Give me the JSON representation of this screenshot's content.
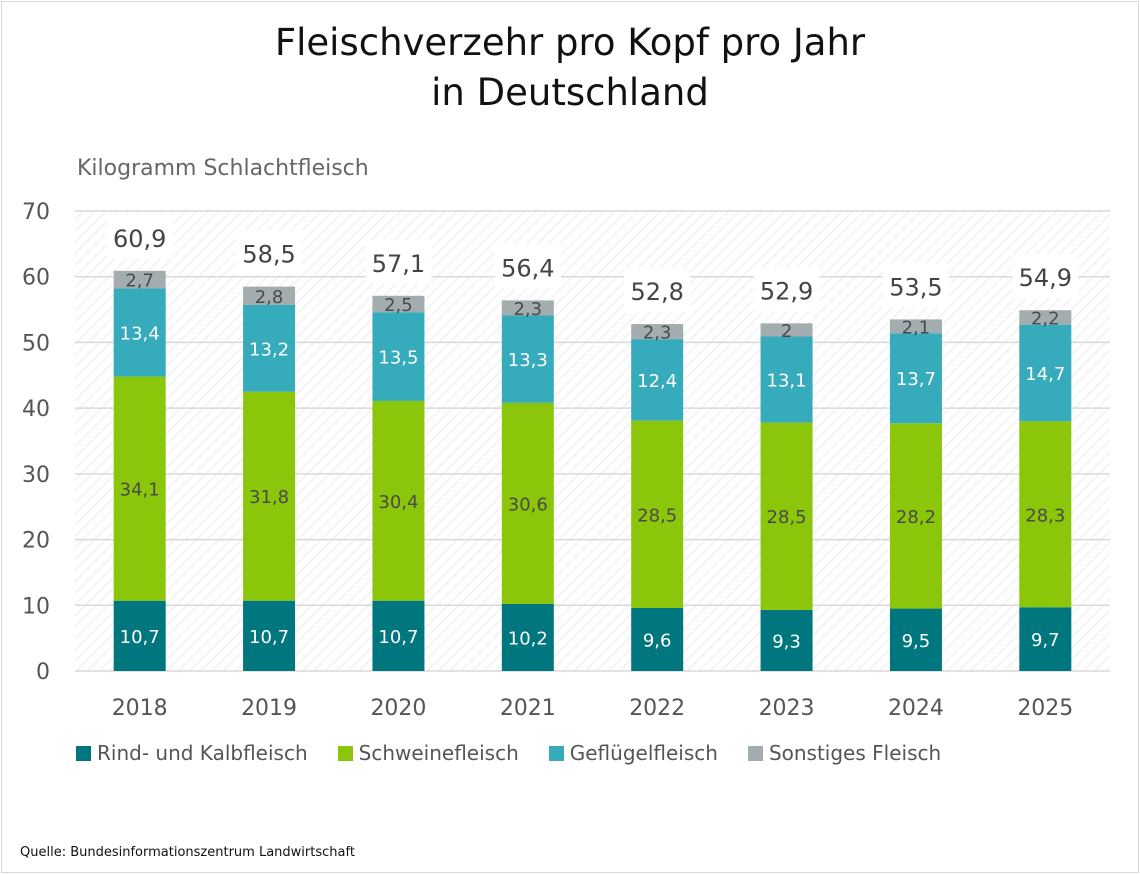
{
  "chart_data": {
    "type": "bar",
    "stacked": true,
    "title": "Fleischverzehr pro Kopf pro Jahr in Deutschland",
    "title_lines": [
      "Fleischverzehr pro Kopf pro Jahr",
      "in Deutschland"
    ],
    "ylabel": "Kilogramm Schlachtfleisch",
    "ylim": [
      0,
      70
    ],
    "yticks": [
      0,
      10,
      20,
      30,
      40,
      50,
      60,
      70
    ],
    "grid": true,
    "legend_position": "bottom",
    "categories": [
      "2018",
      "2019",
      "2020",
      "2021",
      "2022",
      "2023",
      "2024",
      "2025"
    ],
    "series": [
      {
        "name": "Rind- und Kalbfleisch",
        "color": "#00767f",
        "label_color": "#ffffff",
        "values": [
          10.7,
          10.7,
          10.7,
          10.2,
          9.6,
          9.3,
          9.5,
          9.7
        ]
      },
      {
        "name": "Schweinefleisch",
        "color": "#8cc60a",
        "label_color": "#4a4a4a",
        "values": [
          34.1,
          31.8,
          30.4,
          30.6,
          28.5,
          28.5,
          28.2,
          28.3
        ]
      },
      {
        "name": "Geflügelfleisch",
        "color": "#35abbb",
        "label_color": "#ffffff",
        "values": [
          13.4,
          13.2,
          13.5,
          13.3,
          12.4,
          13.1,
          13.7,
          14.7
        ]
      },
      {
        "name": "Sonstiges Fleisch",
        "color": "#a3adb0",
        "label_color": "#4a4a4a",
        "values": [
          2.7,
          2.8,
          2.5,
          2.3,
          2.3,
          2,
          2.1,
          2.2
        ]
      }
    ],
    "totals": [
      60.9,
      58.5,
      57.1,
      56.4,
      52.8,
      52.9,
      53.5,
      54.9
    ]
  },
  "source": "Quelle: Bundesinformationszentrum Landwirtschaft"
}
